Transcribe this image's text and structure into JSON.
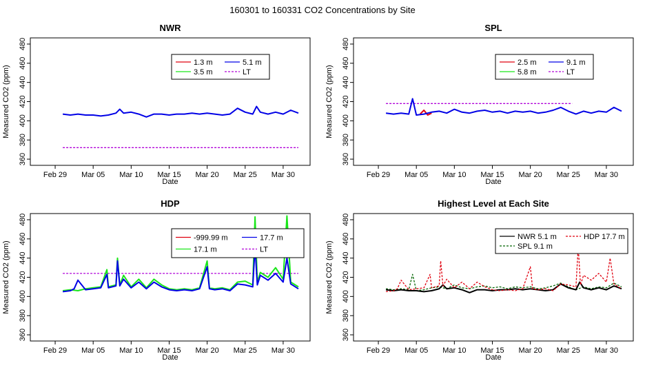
{
  "figure": {
    "title": "160301  to  160331 CO2 Concentrations by Site"
  },
  "colors": {
    "red": "#e0000f",
    "green": "#19e619",
    "blue": "#0000e6",
    "purple": "#b000d8",
    "black": "#000000",
    "darkgreen": "#006400"
  },
  "chart_data": [
    {
      "type": "line",
      "title": "NWR",
      "xlabel": "Date",
      "ylabel": "Measured CO2 (ppm)",
      "xlim": [
        -2,
        33
      ],
      "ylim": [
        355,
        485
      ],
      "xticks": [
        0,
        5,
        10,
        15,
        20,
        25,
        30
      ],
      "xtick_labels": [
        "Feb 29",
        "Mar 05",
        "Mar 10",
        "Mar 15",
        "Mar 20",
        "Mar 25",
        "Mar 30"
      ],
      "yticks": [
        360,
        380,
        400,
        420,
        440,
        460,
        480
      ],
      "legend_position": "top-right",
      "legend": [
        {
          "label": "1.3 m",
          "color": "red",
          "dash": false
        },
        {
          "label": "5.1 m",
          "color": "blue",
          "dash": false
        },
        {
          "label": "3.5 m",
          "color": "green",
          "dash": false
        },
        {
          "label": "LT",
          "color": "purple",
          "dash": true
        }
      ],
      "series": [
        {
          "name": "LT",
          "color": "purple",
          "dash": true,
          "x": [
            1,
            32
          ],
          "y": [
            372,
            372
          ]
        },
        {
          "name": "5.1 m",
          "color": "blue",
          "dash": false,
          "x": [
            1,
            2,
            3,
            4,
            5,
            6,
            7,
            8,
            8.5,
            9,
            10,
            11,
            12,
            13,
            14,
            15,
            16,
            17,
            18,
            19,
            20,
            21,
            22,
            23,
            24,
            25,
            26,
            26.5,
            27,
            28,
            29,
            30,
            31,
            32
          ],
          "y": [
            407,
            406,
            407,
            406,
            406,
            405,
            406,
            408,
            412,
            408,
            409,
            407,
            404,
            407,
            407,
            406,
            407,
            407,
            408,
            407,
            408,
            407,
            406,
            407,
            413,
            409,
            407,
            415,
            409,
            407,
            409,
            407,
            411,
            408
          ]
        },
        {
          "name": "1.3 m",
          "color": "red",
          "dash": false,
          "x": [],
          "y": []
        },
        {
          "name": "3.5 m",
          "color": "green",
          "dash": false,
          "x": [],
          "y": []
        }
      ]
    },
    {
      "type": "line",
      "title": "SPL",
      "xlabel": "Date",
      "ylabel": "Measured CO2 (ppm)",
      "xlim": [
        -2,
        33
      ],
      "ylim": [
        355,
        485
      ],
      "xticks": [
        0,
        5,
        10,
        15,
        20,
        25,
        30
      ],
      "xtick_labels": [
        "Feb 29",
        "Mar 05",
        "Mar 10",
        "Mar 15",
        "Mar 20",
        "Mar 25",
        "Mar 30"
      ],
      "yticks": [
        360,
        380,
        400,
        420,
        440,
        460,
        480
      ],
      "legend_position": "top-right",
      "legend": [
        {
          "label": "2.5 m",
          "color": "red",
          "dash": false
        },
        {
          "label": "9.1 m",
          "color": "blue",
          "dash": false
        },
        {
          "label": "5.8 m",
          "color": "green",
          "dash": false
        },
        {
          "label": "LT",
          "color": "purple",
          "dash": true
        }
      ],
      "series": [
        {
          "name": "LT",
          "color": "purple",
          "dash": true,
          "x": [
            1,
            25.5
          ],
          "y": [
            418,
            418
          ]
        },
        {
          "name": "2.5 m",
          "color": "red",
          "dash": false,
          "x": [
            5.5,
            6,
            6.5,
            7
          ],
          "y": [
            407,
            411,
            406,
            408
          ]
        },
        {
          "name": "9.1 m",
          "color": "blue",
          "dash": false,
          "x": [
            1,
            2,
            3,
            4,
            4.5,
            5,
            6,
            7,
            8,
            9,
            10,
            11,
            12,
            13,
            14,
            15,
            16,
            17,
            18,
            19,
            20,
            21,
            22,
            23,
            24,
            25,
            26,
            27,
            28,
            29,
            30,
            31,
            32
          ],
          "y": [
            408,
            407,
            408,
            407,
            423,
            406,
            407,
            409,
            410,
            408,
            412,
            409,
            408,
            410,
            411,
            409,
            410,
            408,
            410,
            409,
            410,
            408,
            409,
            411,
            414,
            410,
            407,
            410,
            408,
            410,
            409,
            414,
            410
          ]
        },
        {
          "name": "5.8 m",
          "color": "green",
          "dash": false,
          "x": [],
          "y": []
        }
      ]
    },
    {
      "type": "line",
      "title": "HDP",
      "xlabel": "Date",
      "ylabel": "Measured CO2 (ppm)",
      "xlim": [
        -2,
        33
      ],
      "ylim": [
        355,
        485
      ],
      "xticks": [
        0,
        5,
        10,
        15,
        20,
        25,
        30
      ],
      "xtick_labels": [
        "Feb 29",
        "Mar 05",
        "Mar 10",
        "Mar 15",
        "Mar 20",
        "Mar 25",
        "Mar 30"
      ],
      "yticks": [
        360,
        380,
        400,
        420,
        440,
        460,
        480
      ],
      "legend_position": "top-right",
      "legend": [
        {
          "label": "-999.99 m",
          "color": "red",
          "dash": false
        },
        {
          "label": "17.7 m",
          "color": "blue",
          "dash": false
        },
        {
          "label": "17.1 m",
          "color": "green",
          "dash": false
        },
        {
          "label": "LT",
          "color": "purple",
          "dash": true
        }
      ],
      "series": [
        {
          "name": "LT",
          "color": "purple",
          "dash": true,
          "x": [
            1,
            32
          ],
          "y": [
            424,
            424
          ]
        },
        {
          "name": "17.1 m",
          "color": "green",
          "dash": false,
          "x": [
            1,
            2,
            3,
            4,
            5,
            6,
            6.8,
            7,
            8,
            8.2,
            8.5,
            9,
            10,
            11,
            12,
            13,
            14,
            15,
            16,
            17,
            18,
            19,
            20,
            20.3,
            21,
            22,
            23,
            24,
            25,
            26,
            26.3,
            26.6,
            27,
            28,
            29,
            30,
            30.5,
            31,
            32
          ],
          "y": [
            406,
            407,
            406,
            408,
            409,
            410,
            428,
            410,
            412,
            440,
            412,
            422,
            410,
            418,
            409,
            418,
            412,
            408,
            407,
            408,
            407,
            409,
            437,
            409,
            408,
            409,
            407,
            415,
            416,
            412,
            483,
            415,
            425,
            420,
            430,
            418,
            484,
            415,
            410
          ]
        },
        {
          "name": "17.7 m",
          "color": "blue",
          "dash": false,
          "x": [
            1,
            2,
            2.5,
            3,
            4,
            5,
            6,
            6.8,
            7,
            8,
            8.2,
            8.5,
            9,
            10,
            11,
            12,
            13,
            14,
            15,
            16,
            17,
            18,
            19,
            20,
            20.3,
            21,
            22,
            23,
            24,
            25,
            26,
            26.3,
            26.6,
            27,
            28,
            29,
            30,
            30.5,
            31,
            32
          ],
          "y": [
            405,
            406,
            408,
            417,
            407,
            408,
            409,
            423,
            409,
            411,
            437,
            411,
            418,
            409,
            415,
            408,
            415,
            410,
            407,
            406,
            407,
            406,
            408,
            431,
            408,
            407,
            408,
            406,
            413,
            412,
            410,
            452,
            412,
            422,
            417,
            424,
            415,
            440,
            413,
            408
          ]
        },
        {
          "name": "-999.99 m",
          "color": "red",
          "dash": false,
          "x": [],
          "y": []
        }
      ]
    },
    {
      "type": "line",
      "title": "Highest Level at Each Site",
      "xlabel": "Date",
      "ylabel": "Measured CO2 (ppm)",
      "xlim": [
        -2,
        33
      ],
      "ylim": [
        355,
        485
      ],
      "xticks": [
        0,
        5,
        10,
        15,
        20,
        25,
        30
      ],
      "xtick_labels": [
        "Feb 29",
        "Mar 05",
        "Mar 10",
        "Mar 15",
        "Mar 20",
        "Mar 25",
        "Mar 30"
      ],
      "yticks": [
        360,
        380,
        400,
        420,
        440,
        460,
        480
      ],
      "legend_position": "top-right",
      "legend": [
        {
          "label": "NWR  5.1 m",
          "color": "black",
          "dash": false
        },
        {
          "label": "HDP  17.7 m",
          "color": "red",
          "dash": true
        },
        {
          "label": "SPL  9.1 m",
          "color": "darkgreen",
          "dash": true
        }
      ],
      "series": [
        {
          "name": "SPL  9.1 m",
          "color": "darkgreen",
          "dash": true,
          "x": [
            1,
            2,
            3,
            4,
            4.5,
            5,
            6,
            7,
            8,
            9,
            10,
            11,
            12,
            13,
            14,
            15,
            16,
            17,
            18,
            19,
            20,
            21,
            22,
            23,
            24,
            25,
            26,
            27,
            28,
            29,
            30,
            31,
            32
          ],
          "y": [
            408,
            407,
            408,
            407,
            423,
            406,
            407,
            409,
            410,
            408,
            412,
            409,
            408,
            410,
            411,
            409,
            410,
            408,
            410,
            409,
            410,
            408,
            409,
            411,
            414,
            410,
            407,
            410,
            408,
            410,
            409,
            414,
            410
          ]
        },
        {
          "name": "NWR  5.1 m",
          "color": "black",
          "dash": false,
          "x": [
            1,
            2,
            3,
            4,
            5,
            6,
            7,
            8,
            8.5,
            9,
            10,
            11,
            12,
            13,
            14,
            15,
            16,
            17,
            18,
            19,
            20,
            21,
            22,
            23,
            24,
            25,
            26,
            26.5,
            27,
            28,
            29,
            30,
            31,
            32
          ],
          "y": [
            407,
            406,
            407,
            406,
            406,
            405,
            406,
            408,
            412,
            408,
            409,
            407,
            404,
            407,
            407,
            406,
            407,
            407,
            408,
            407,
            408,
            407,
            406,
            407,
            413,
            409,
            407,
            415,
            409,
            407,
            409,
            407,
            411,
            408
          ]
        },
        {
          "name": "HDP  17.7 m",
          "color": "red",
          "dash": true,
          "x": [
            1,
            2,
            2.5,
            3,
            4,
            5,
            6,
            6.8,
            7,
            8,
            8.2,
            8.5,
            9,
            10,
            11,
            12,
            13,
            14,
            15,
            16,
            17,
            18,
            19,
            20,
            20.3,
            21,
            22,
            23,
            24,
            25,
            26,
            26.3,
            26.6,
            27,
            28,
            29,
            30,
            30.5,
            31,
            32
          ],
          "y": [
            405,
            406,
            408,
            417,
            407,
            408,
            409,
            423,
            409,
            411,
            437,
            411,
            418,
            409,
            415,
            408,
            415,
            410,
            407,
            406,
            407,
            406,
            408,
            431,
            408,
            407,
            408,
            406,
            413,
            412,
            410,
            452,
            412,
            422,
            417,
            424,
            415,
            440,
            413,
            408
          ]
        }
      ]
    }
  ]
}
